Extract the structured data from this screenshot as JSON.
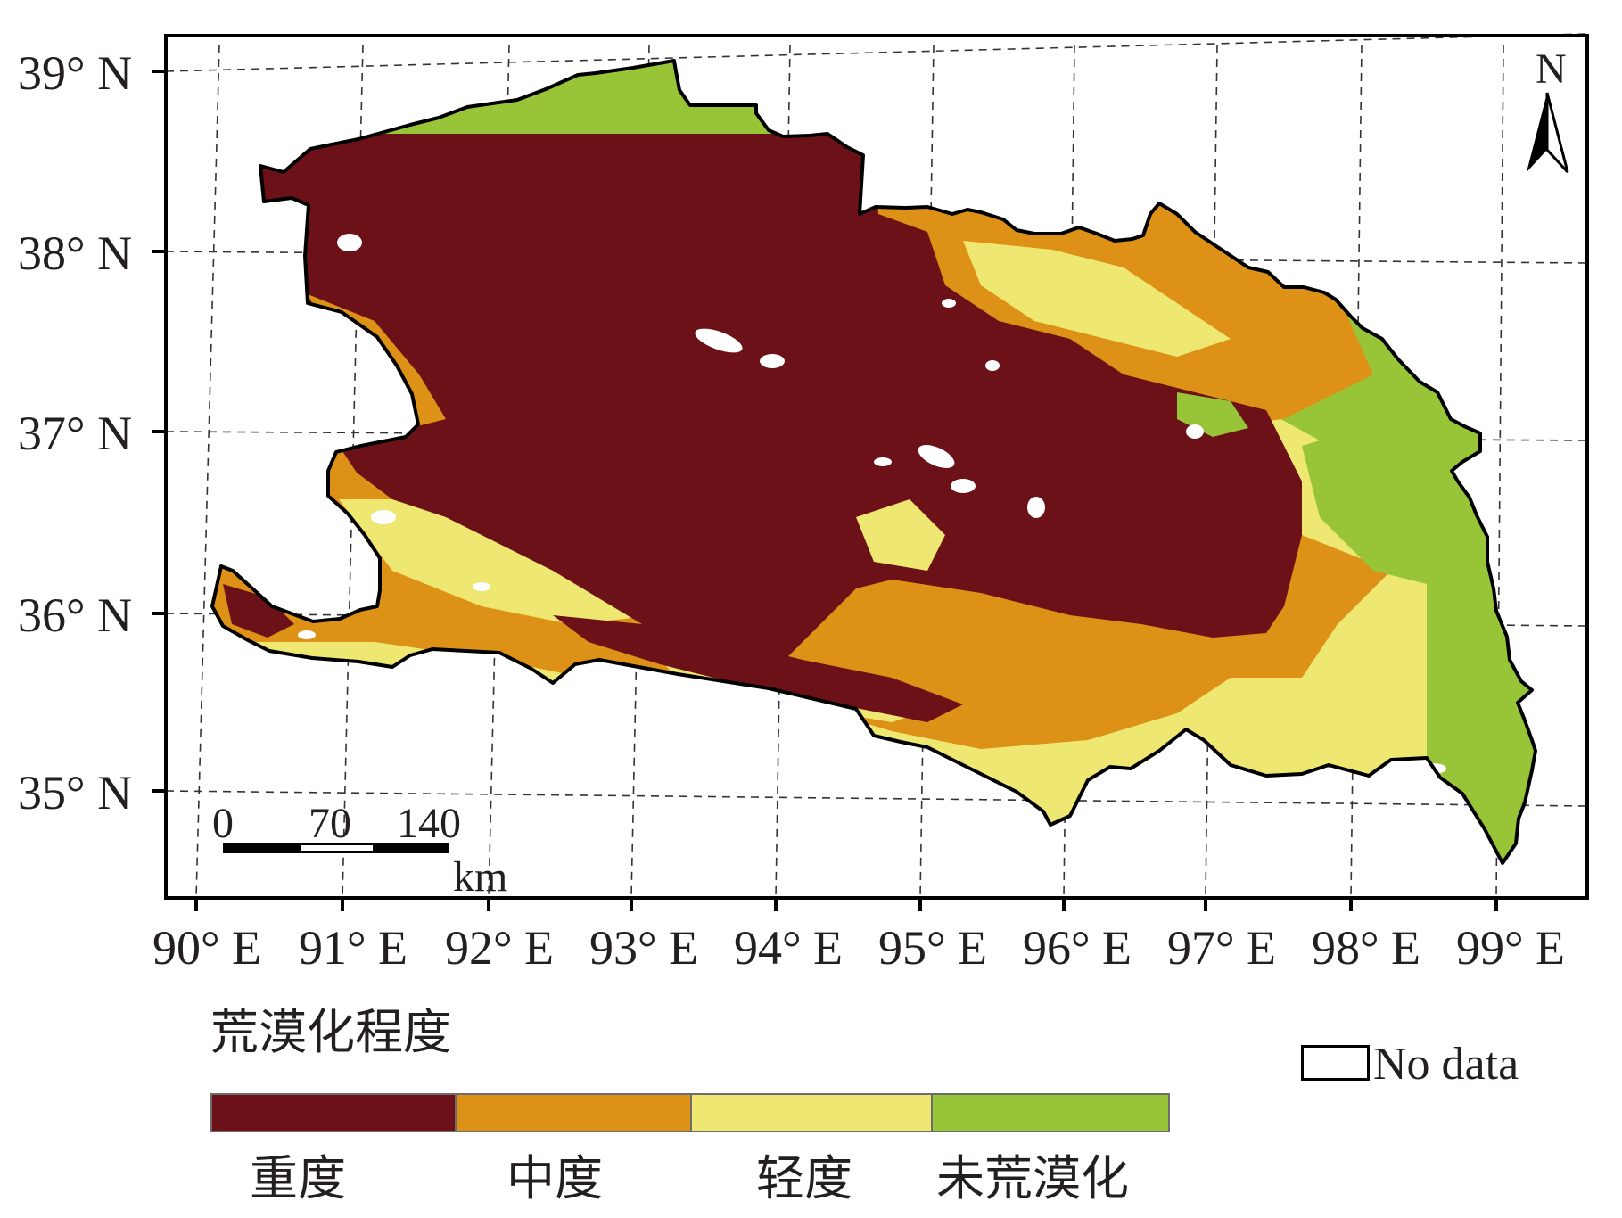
{
  "map": {
    "latitude_labels": [
      "39° N",
      "38° N",
      "37° N",
      "36° N",
      "35° N"
    ],
    "longitude_labels": [
      "90° E",
      "91° E",
      "92° E",
      "93° E",
      "94° E",
      "95° E",
      "96° E",
      "97° E",
      "98° E",
      "99° E"
    ],
    "north_arrow": {
      "label": "N",
      "icon": "north-arrow-icon"
    },
    "scale_bar": {
      "ticks": [
        "0",
        "70",
        "140"
      ],
      "unit": "km"
    }
  },
  "legend": {
    "title": "荒漠化程度",
    "classes": [
      {
        "label": "重度",
        "color": "#6b1117"
      },
      {
        "label": "中度",
        "color": "#dd9116"
      },
      {
        "label": "轻度",
        "color": "#eee872"
      },
      {
        "label": "未荒漠化",
        "color": "#98c538"
      }
    ],
    "no_data": {
      "label": "No data",
      "color": "#ffffff"
    }
  }
}
